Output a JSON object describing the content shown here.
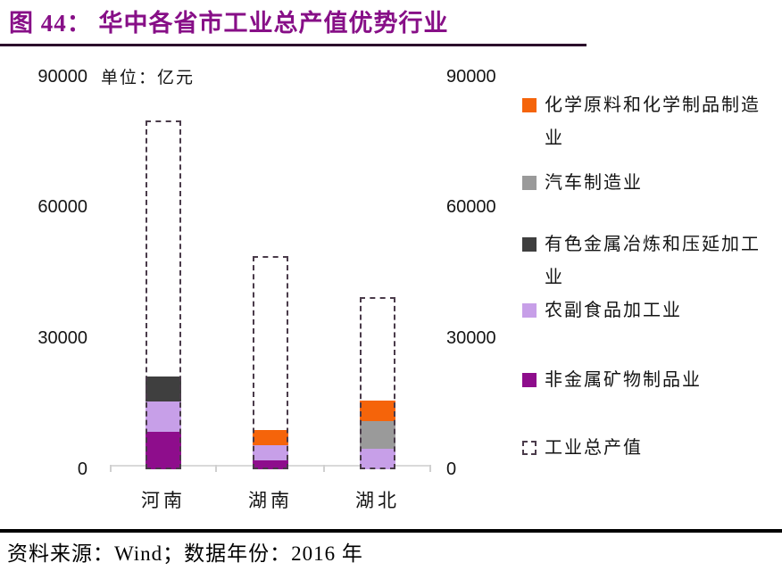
{
  "header": {
    "title": "图 44： 华中各省市工业总产值优势行业"
  },
  "chart": {
    "unit_label": "单位：亿元",
    "y_axis_left": [
      "90000",
      "60000",
      "30000",
      "0"
    ],
    "y_axis_right": [
      "90000",
      "60000",
      "30000",
      "0"
    ]
  },
  "legend": {
    "items": [
      {
        "id": "chemical",
        "label": "化学原料和化学制品制造业",
        "color": "#F5640A",
        "swatch": "solid"
      },
      {
        "id": "auto",
        "label": "汽车制造业",
        "color": "#9A9A9A",
        "swatch": "solid"
      },
      {
        "id": "nonferrous",
        "label": "有色金属冶炼和压延加工业",
        "color": "#3F3F3F",
        "swatch": "solid"
      },
      {
        "id": "agrifood",
        "label": "农副食品加工业",
        "color": "#C79FE8",
        "swatch": "solid"
      },
      {
        "id": "nonmetal",
        "label": "非金属矿物制品业",
        "color": "#8E0D8C",
        "swatch": "solid"
      },
      {
        "id": "total-outline",
        "label": "工业总产值",
        "color": "#4A3B4A",
        "swatch": "dashed"
      }
    ]
  },
  "footer": {
    "source": "资料来源：Wind；数据年份：2016 年"
  },
  "colors": {
    "title": "#870F87",
    "title_rule": "#2B072B",
    "axis_line": "#D9D9D9",
    "outline_dash": "#4A3B4A",
    "text": "#141414"
  },
  "chart_data": {
    "type": "bar",
    "stacked": true,
    "title": "华中各省市工业总产值优势行业",
    "unit": "亿元",
    "ylim": [
      0,
      90000
    ],
    "yticks": [
      0,
      30000,
      60000,
      90000
    ],
    "grid": false,
    "legend_position": "right",
    "categories": [
      "河南",
      "湖南",
      "湖北"
    ],
    "outline_series": {
      "name": "工业总产值",
      "values": [
        80000,
        48800,
        39500
      ]
    },
    "bars": [
      {
        "category": "河南",
        "segments": [
          {
            "name": "非金属矿物制品业",
            "value": 8600
          },
          {
            "name": "农副食品加工业",
            "value": 7000
          },
          {
            "name": "有色金属冶炼和压延加工业",
            "value": 5800
          }
        ]
      },
      {
        "category": "湖南",
        "segments": [
          {
            "name": "非金属矿物制品业",
            "value": 2100
          },
          {
            "name": "农副食品加工业",
            "value": 3500
          },
          {
            "name": "化学原料和化学制品制造业",
            "value": 3500
          }
        ]
      },
      {
        "category": "湖北",
        "segments": [
          {
            "name": "农副食品加工业",
            "value": 4700
          },
          {
            "name": "汽车制造业",
            "value": 6300
          },
          {
            "name": "化学原料和化学制品制造业",
            "value": 4800
          }
        ]
      }
    ],
    "series_colors": {
      "化学原料和化学制品制造业": "#F5640A",
      "汽车制造业": "#9A9A9A",
      "有色金属冶炼和压延加工业": "#3F3F3F",
      "农副食品加工业": "#C79FE8",
      "非金属矿物制品业": "#8E0D8C"
    }
  }
}
